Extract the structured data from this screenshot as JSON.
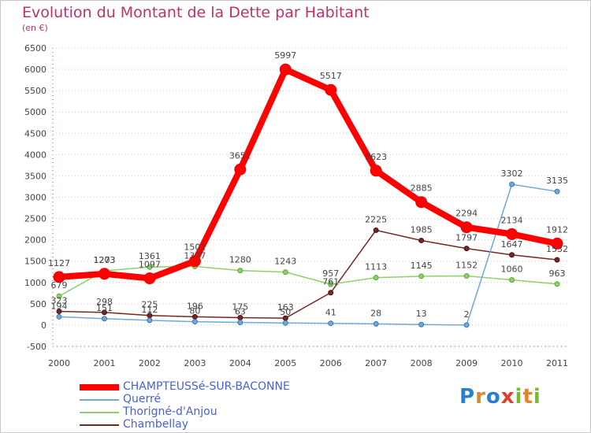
{
  "header": {
    "title": "Evolution du Montant de la Dette par Habitant",
    "subtitle": "(en €)"
  },
  "logo": {
    "text": "Proxiti"
  },
  "chart_data": {
    "type": "line",
    "title": "Evolution du Montant de la Dette par Habitant",
    "subtitle": "(en €)",
    "xlabel": "",
    "ylabel": "",
    "x": [
      "2000",
      "2001",
      "2002",
      "2003",
      "2004",
      "2005",
      "2006",
      "2007",
      "2008",
      "2009",
      "2010",
      "2011"
    ],
    "ylim": [
      -500,
      6500
    ],
    "yticks": [
      -500,
      0,
      500,
      1000,
      1500,
      2000,
      2500,
      3000,
      3500,
      4000,
      4500,
      5000,
      5500,
      6000,
      6500
    ],
    "grid": "horizontal-dotted",
    "legend": "bottom-left",
    "series": [
      {
        "name": "CHAMPTEUSSé-SUR-BACONNE",
        "color": "#ff0000",
        "width": 8,
        "values": [
          1127,
          1203,
          1097,
          1501,
          3651,
          5997,
          5517,
          3623,
          2885,
          2294,
          2134,
          1912
        ],
        "labels": [
          "1127",
          "1203",
          "1097",
          "1501",
          "3651",
          "5997",
          "5517",
          "3623",
          "2885",
          "2294",
          "2134",
          "1912"
        ]
      },
      {
        "name": "Querré",
        "color": "#6fa8dc",
        "width": 1.5,
        "values": [
          194,
          151,
          112,
          80,
          63,
          50,
          41,
          28,
          13,
          2,
          3302,
          3135
        ],
        "labels": [
          "194",
          "151",
          "112",
          "80",
          "63",
          "50",
          "41",
          "28",
          "13",
          "2",
          "3302",
          "3135"
        ]
      },
      {
        "name": "Thorigné-d'Anjou",
        "color": "#8fd06a",
        "width": 1.5,
        "values": [
          679,
          1273,
          1361,
          1377,
          1280,
          1243,
          957,
          1113,
          1145,
          1152,
          1060,
          963
        ],
        "labels": [
          "679",
          "1273",
          "1361",
          "1377",
          "1280",
          "1243",
          "957",
          "1113",
          "1145",
          "1152",
          "1060",
          "963"
        ]
      },
      {
        "name": "Chambellay",
        "color": "#7a2424",
        "width": 1.5,
        "values": [
          323,
          298,
          225,
          196,
          175,
          163,
          761,
          2225,
          1985,
          1797,
          1647,
          1532
        ],
        "labels": [
          "323",
          "298",
          "225",
          "196",
          "175",
          "163",
          "761",
          "2225",
          "1985",
          "1797",
          "1647",
          "1532"
        ]
      }
    ]
  }
}
